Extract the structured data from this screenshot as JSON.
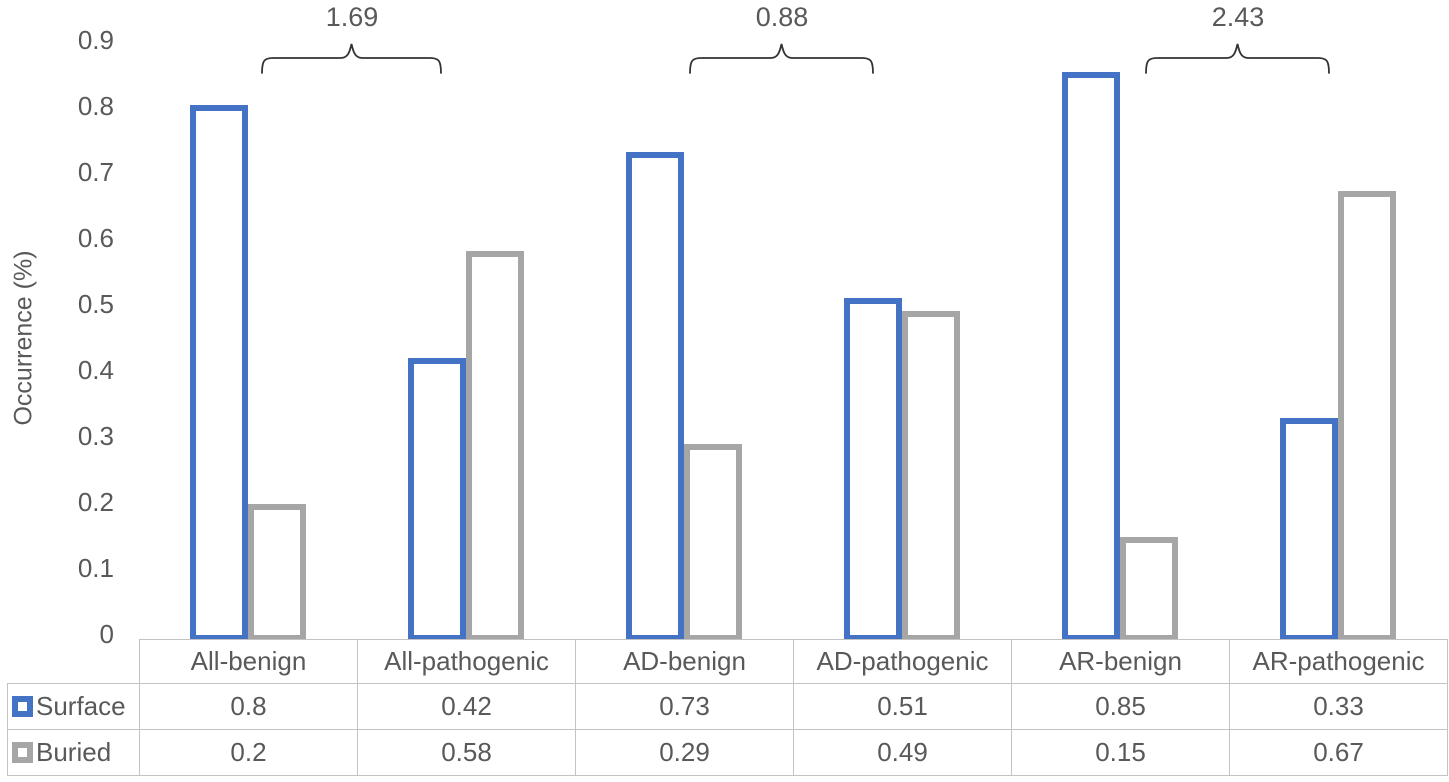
{
  "chart_data": {
    "type": "bar",
    "title": "",
    "ylabel": "Occurrence (%)",
    "xlabel": "",
    "categories": [
      "All-benign",
      "All-pathogenic",
      "AD-benign",
      "AD-pathogenic",
      "AR-benign",
      "AR-pathogenic"
    ],
    "series": [
      {
        "name": "Surface",
        "color": "#4472C4",
        "values": [
          0.8,
          0.42,
          0.73,
          0.51,
          0.85,
          0.33
        ]
      },
      {
        "name": "Buried",
        "color": "#A6A6A6",
        "values": [
          0.2,
          0.58,
          0.29,
          0.49,
          0.15,
          0.67
        ]
      }
    ],
    "ylim": [
      0,
      0.9
    ],
    "yticks": [
      "0",
      "0.1",
      "0.2",
      "0.3",
      "0.4",
      "0.5",
      "0.6",
      "0.7",
      "0.8",
      "0.9"
    ],
    "grid": false,
    "bar_style": "outlined-white-fill",
    "legend_position": "table-left-keys",
    "annotations": [
      {
        "label": "1.69",
        "over": [
          "All-benign",
          "All-pathogenic"
        ]
      },
      {
        "label": "0.88",
        "over": [
          "AD-benign",
          "AD-pathogenic"
        ]
      },
      {
        "label": "2.43",
        "over": [
          "AR-benign",
          "AR-pathogenic"
        ]
      }
    ]
  },
  "table": {
    "headers": [
      "All-benign",
      "All-pathogenic",
      "AD-benign",
      "AD-pathogenic",
      "AR-benign",
      "AR-pathogenic"
    ],
    "rows": [
      {
        "label": "Surface",
        "values": [
          "0.8",
          "0.42",
          "0.73",
          "0.51",
          "0.85",
          "0.33"
        ]
      },
      {
        "label": "Buried",
        "values": [
          "0.2",
          "0.58",
          "0.29",
          "0.49",
          "0.15",
          "0.67"
        ]
      }
    ]
  },
  "colors": {
    "surface": "#4472C4",
    "buried": "#A6A6A6",
    "text": "#595959",
    "table_border": "#C3C3C3",
    "brace": "#333333"
  }
}
